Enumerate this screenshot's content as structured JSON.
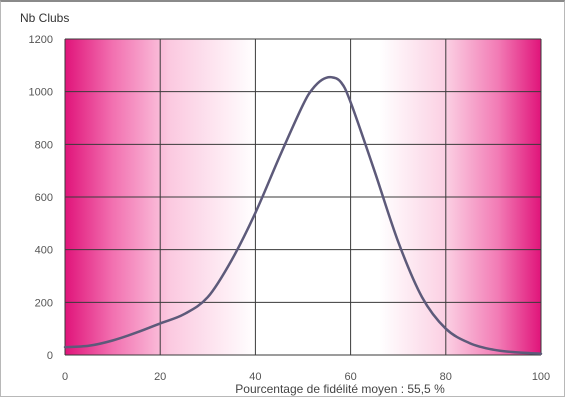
{
  "chart_data": {
    "type": "line",
    "title": "",
    "ylabel": "Nb Clubs",
    "xlabel": "Pourcentage de fidélité moyen : 55,5 %",
    "xlim": [
      0,
      100
    ],
    "ylim": [
      0,
      1200
    ],
    "x_ticks": [
      0,
      20,
      40,
      60,
      80,
      100
    ],
    "y_ticks": [
      0,
      200,
      400,
      600,
      800,
      1000,
      1200
    ],
    "grid": true,
    "legend": "none",
    "background_gradient": {
      "edge_color": "#e0147a",
      "center_color": "#ffffff",
      "description": "magenta at left and right edges fading to white in the middle"
    },
    "series": [
      {
        "color": "#5d5a7a",
        "x": [
          0,
          5,
          10,
          15,
          20,
          25,
          30,
          35,
          40,
          45,
          50,
          52,
          54,
          56,
          58,
          60,
          65,
          70,
          75,
          80,
          85,
          90,
          95,
          100
        ],
        "y": [
          30,
          35,
          55,
          85,
          120,
          155,
          220,
          360,
          540,
          750,
          950,
          1010,
          1045,
          1055,
          1035,
          960,
          700,
          430,
          220,
          100,
          45,
          20,
          10,
          5
        ]
      }
    ]
  }
}
